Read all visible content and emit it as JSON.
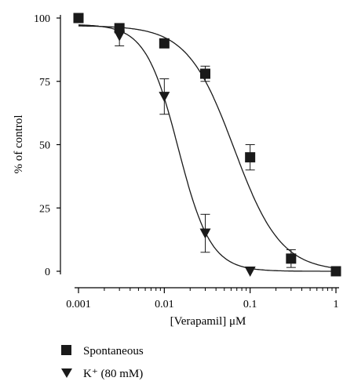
{
  "chart_data": {
    "type": "scatter",
    "title": "",
    "xlabel": "[Verapamil] μM",
    "ylabel": "% of control",
    "x_scale": "log",
    "xlim": [
      0.001,
      1
    ],
    "ylim": [
      0,
      100
    ],
    "x_ticks": [
      0.001,
      0.01,
      0.1,
      1
    ],
    "x_tick_labels": [
      "0.001",
      "0.01",
      "0.1",
      "1"
    ],
    "y_ticks": [
      0,
      25,
      50,
      75,
      100
    ],
    "y_tick_labels": [
      "0",
      "25",
      "50",
      "75",
      "100"
    ],
    "grid": false,
    "legend_position": "bottom-left",
    "series": [
      {
        "name": "Spontaneous",
        "marker": "square",
        "color": "#1a1a1a",
        "points": [
          {
            "x": 0.001,
            "y": 100,
            "err": 0
          },
          {
            "x": 0.003,
            "y": 96,
            "err": 1.5
          },
          {
            "x": 0.01,
            "y": 90,
            "err": 0
          },
          {
            "x": 0.03,
            "y": 78,
            "err": 3
          },
          {
            "x": 0.1,
            "y": 45,
            "err": 5
          },
          {
            "x": 0.3,
            "y": 5,
            "err": 3.5
          },
          {
            "x": 1,
            "y": 0,
            "err": 0
          }
        ],
        "fit": {
          "top": 97,
          "bottom": 0,
          "ic50": 0.065,
          "hill": 1.6
        }
      },
      {
        "name": "K⁺ (80 mM)",
        "marker": "triangle-down",
        "color": "#1a1a1a",
        "points": [
          {
            "x": 0.003,
            "y": 93,
            "err": 4
          },
          {
            "x": 0.01,
            "y": 69,
            "err": 7
          },
          {
            "x": 0.03,
            "y": 15,
            "err": 7.5
          },
          {
            "x": 0.1,
            "y": 0,
            "err": 0
          }
        ],
        "fit": {
          "top": 97.5,
          "bottom": 0,
          "ic50": 0.0145,
          "hill": 2.3
        }
      }
    ]
  }
}
